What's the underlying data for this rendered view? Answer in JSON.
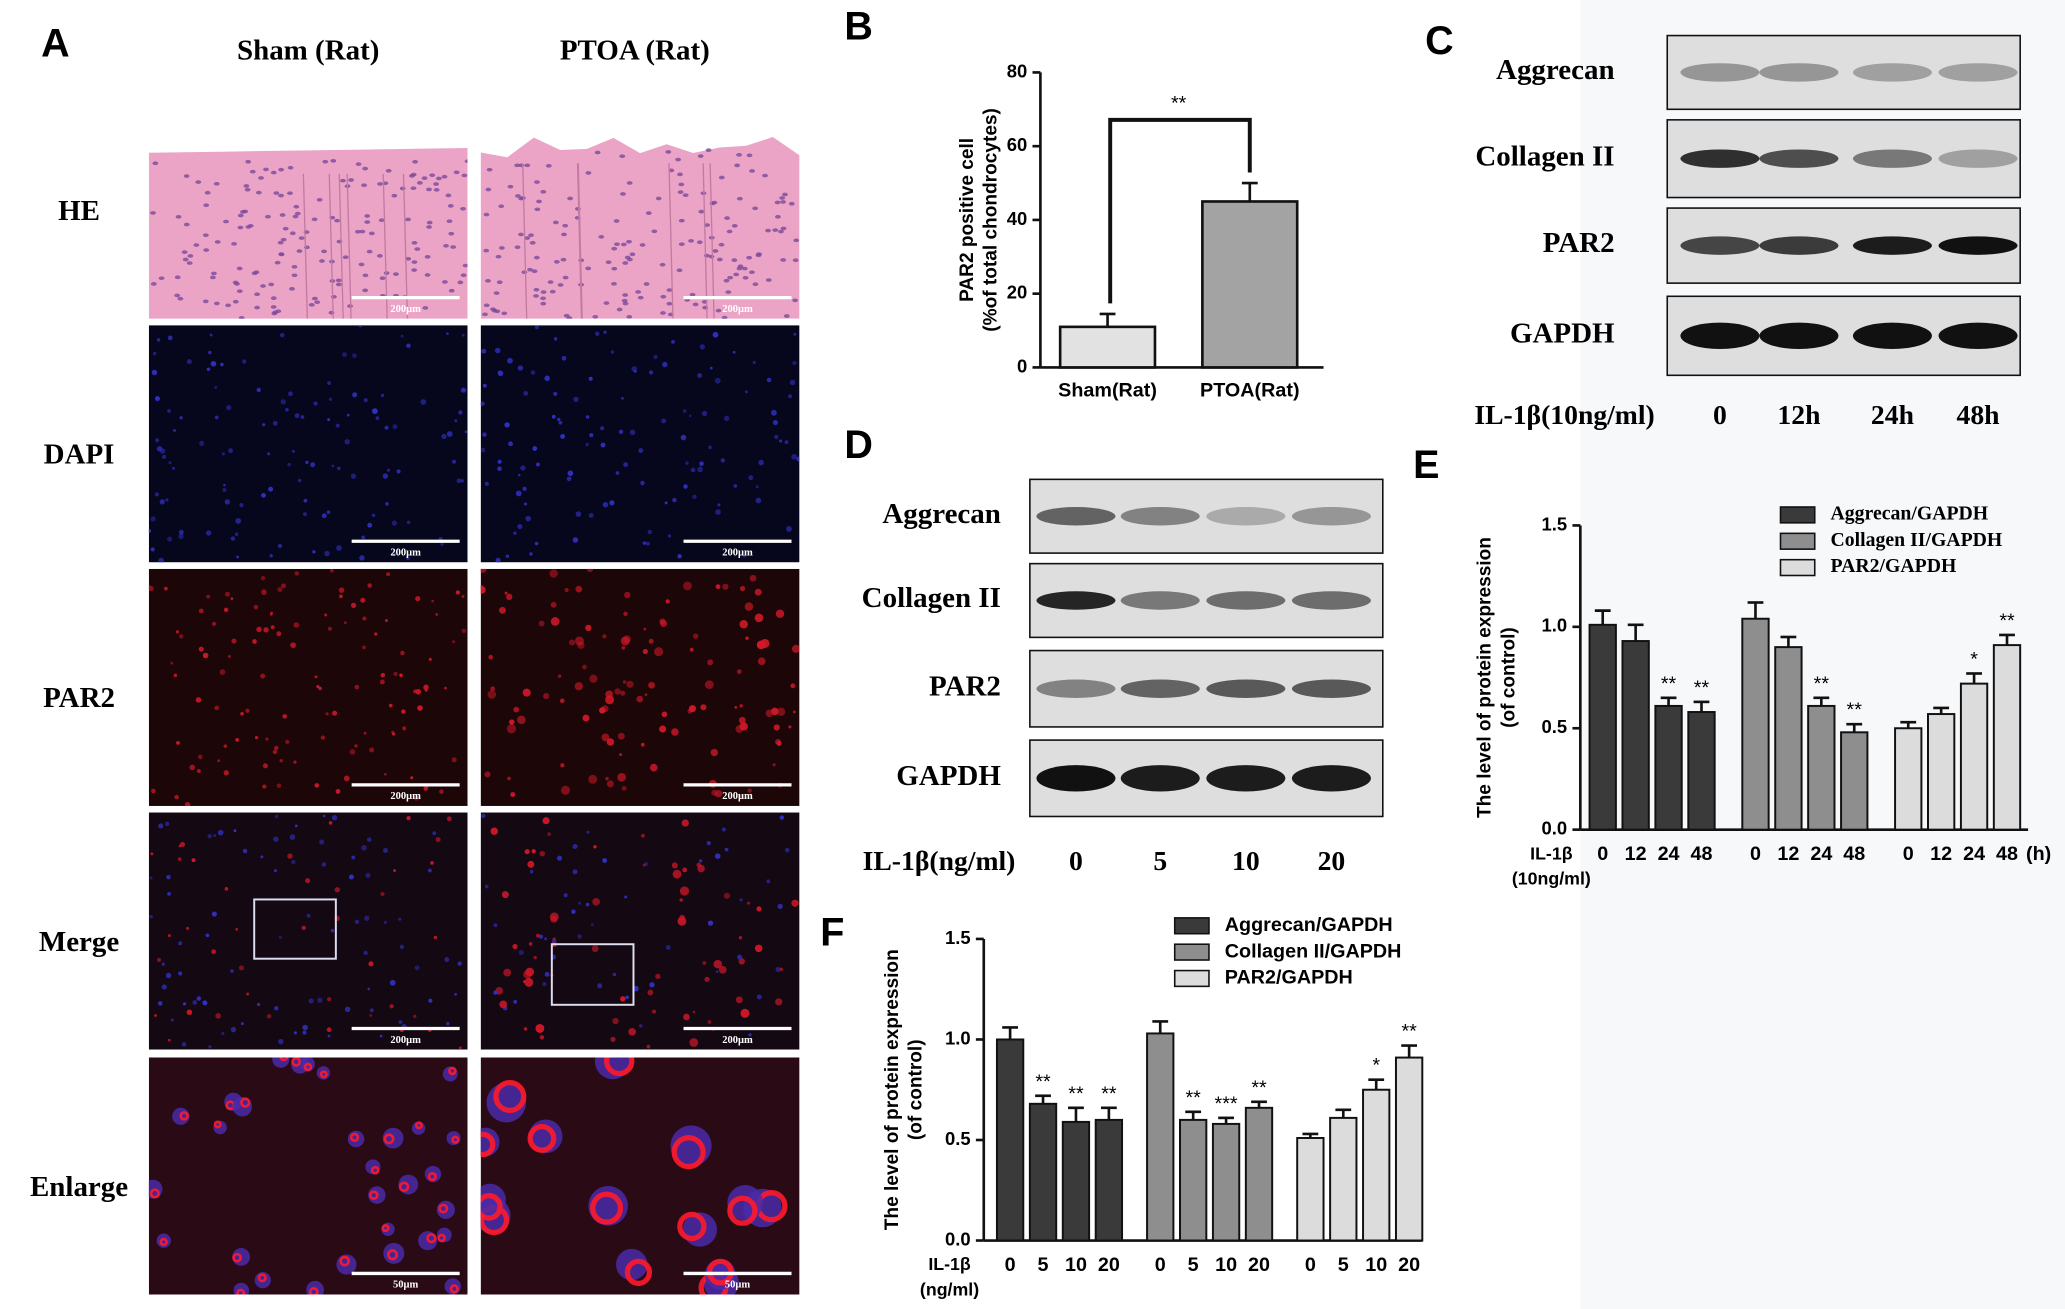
{
  "figure": {
    "A": {
      "letter": "A",
      "columns": [
        "Sham (Rat)",
        "PTOA (Rat)"
      ],
      "rows": [
        {
          "label": "HE",
          "scale_bar": "200μm"
        },
        {
          "label": "DAPI",
          "scale_bar": "200μm"
        },
        {
          "label": "PAR2",
          "scale_bar": "200μm"
        },
        {
          "label": "Merge",
          "scale_bar": "200μm"
        },
        {
          "label": "Enlarge",
          "scale_bar": "50μm"
        }
      ]
    },
    "C": {
      "letter": "C",
      "proteins": [
        "Aggrecan",
        "Collagen II",
        "PAR2",
        "GAPDH"
      ],
      "treatment": "IL-1β(10ng/ml)",
      "lanes": [
        "0",
        "12h",
        "24h",
        "48h"
      ]
    },
    "D": {
      "letter": "D",
      "proteins": [
        "Aggrecan",
        "Collagen II",
        "PAR2",
        "GAPDH"
      ],
      "treatment": "IL-1β(ng/ml)",
      "lanes": [
        "0",
        "5",
        "10",
        "20"
      ]
    }
  },
  "chart_data": [
    {
      "type": "bar",
      "letter": "B",
      "ylabel": [
        "PAR2 positive cell",
        "(%of total chondrocytes)"
      ],
      "categories": [
        "Sham(Rat)",
        "PTOA(Rat)"
      ],
      "values": [
        11,
        45
      ],
      "errors": [
        3.5,
        5
      ],
      "colors": [
        "#e2e2e2",
        "#a3a3a3"
      ],
      "annotation": "**",
      "ylim": [
        0,
        80
      ],
      "yticks": [
        0,
        20,
        40,
        60,
        80
      ]
    },
    {
      "type": "bar",
      "letter": "E",
      "ylabel": [
        "The level of protein expression",
        "(of control)"
      ],
      "xlabel": [
        "IL-1β",
        "(10ng/ml)"
      ],
      "xunit": "(h)",
      "categories": [
        "0",
        "12",
        "24",
        "48"
      ],
      "series": [
        {
          "name": "Aggrecan/GAPDH",
          "color": "#3a3a3a",
          "values": [
            1.01,
            0.93,
            0.61,
            0.58
          ],
          "errors": [
            0.07,
            0.08,
            0.04,
            0.05
          ],
          "annotations": [
            null,
            null,
            "**",
            "**"
          ]
        },
        {
          "name": "Collagen II/GAPDH",
          "color": "#8e8e8e",
          "values": [
            1.04,
            0.9,
            0.61,
            0.48
          ],
          "errors": [
            0.08,
            0.05,
            0.04,
            0.04
          ],
          "annotations": [
            null,
            null,
            "**",
            "**"
          ]
        },
        {
          "name": "PAR2/GAPDH",
          "color": "#dcdcdc",
          "values": [
            0.5,
            0.57,
            0.72,
            0.91
          ],
          "errors": [
            0.03,
            0.03,
            0.05,
            0.05
          ],
          "annotations": [
            null,
            null,
            "*",
            "**"
          ]
        }
      ],
      "ylim": [
        0,
        1.5
      ],
      "yticks": [
        {
          "value": 0,
          "label": "0.0"
        },
        {
          "value": 0.5,
          "label": "0.5"
        },
        {
          "value": 1,
          "label": "1.0"
        },
        {
          "value": 1.5,
          "label": "1.5"
        }
      ]
    },
    {
      "type": "bar",
      "letter": "F",
      "ylabel": [
        "The level of protein expression",
        "(of control)"
      ],
      "xlabel": [
        "IL-1β",
        "(ng/ml)"
      ],
      "categories": [
        "0",
        "5",
        "10",
        "20"
      ],
      "series": [
        {
          "name": "Aggrecan/GAPDH",
          "color": "#3a3a3a",
          "values": [
            1.0,
            0.68,
            0.59,
            0.6
          ],
          "errors": [
            0.06,
            0.04,
            0.07,
            0.06
          ],
          "annotations": [
            null,
            "**",
            "**",
            "**"
          ]
        },
        {
          "name": "Collagen II/GAPDH",
          "color": "#8e8e8e",
          "values": [
            1.03,
            0.6,
            0.58,
            0.66
          ],
          "errors": [
            0.06,
            0.04,
            0.03,
            0.03
          ],
          "annotations": [
            null,
            "**",
            "***",
            "**"
          ]
        },
        {
          "name": "PAR2/GAPDH",
          "color": "#dcdcdc",
          "values": [
            0.51,
            0.61,
            0.75,
            0.91
          ],
          "errors": [
            0.02,
            0.04,
            0.05,
            0.06
          ],
          "annotations": [
            null,
            null,
            "*",
            "**"
          ]
        }
      ],
      "ylim": [
        0,
        1.5
      ],
      "yticks": [
        {
          "value": 0,
          "label": "0.0"
        },
        {
          "value": 0.5,
          "label": "0.5"
        },
        {
          "value": 1,
          "label": "1.0"
        },
        {
          "value": 1.5,
          "label": "1.5"
        }
      ]
    }
  ]
}
